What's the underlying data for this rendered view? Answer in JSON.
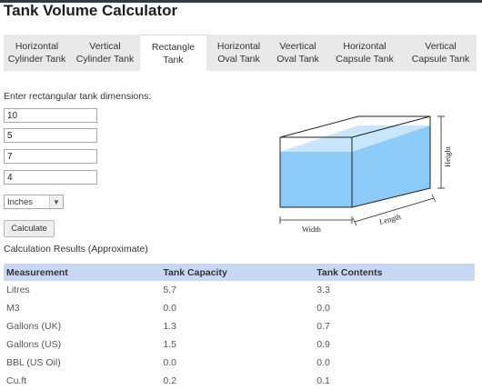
{
  "page": {
    "title": "Tank Volume Calculator"
  },
  "tabs": [
    {
      "label": "Horizontal\nCylinder Tank",
      "active": false
    },
    {
      "label": "Vertical\nCylinder Tank",
      "active": false
    },
    {
      "label": "Rectangle\nTank",
      "active": true
    },
    {
      "label": "Horizontal\nOval Tank",
      "active": false
    },
    {
      "label": "Veertical\nOval Tank",
      "active": false
    },
    {
      "label": "Horizontal\nCapsule Tank",
      "active": false
    },
    {
      "label": "Vertical\nCapsule Tank",
      "active": false
    }
  ],
  "form": {
    "intro": "Enter rectangular tank dimensions:",
    "fields": [
      {
        "value": "10"
      },
      {
        "value": "5"
      },
      {
        "value": "7"
      },
      {
        "value": "4"
      }
    ],
    "unit": "Inches",
    "calculate_label": "Calculate"
  },
  "diagram": {
    "width_label": "Width",
    "length_label": "Length",
    "height_label": "Height",
    "colors": {
      "liquid": "#8ccbf7",
      "liquid_top": "#c8e6fb",
      "outline": "#222222"
    }
  },
  "results": {
    "title": "Calculation Results (Approximate)",
    "headers": [
      "Measurement",
      "Tank Capacity",
      "Tank Contents"
    ],
    "rows": [
      [
        "Litres",
        "5.7",
        "3.3"
      ],
      [
        "M3",
        "0.0",
        "0.0"
      ],
      [
        "Gallons (UK)",
        "1.3",
        "0.7"
      ],
      [
        "Gallons (US)",
        "1.5",
        "0.9"
      ],
      [
        "BBL (US Oil)",
        "0.0",
        "0.0"
      ],
      [
        "Cu.ft",
        "0.2",
        "0.1"
      ]
    ],
    "header_color": "#c9d9f5"
  }
}
